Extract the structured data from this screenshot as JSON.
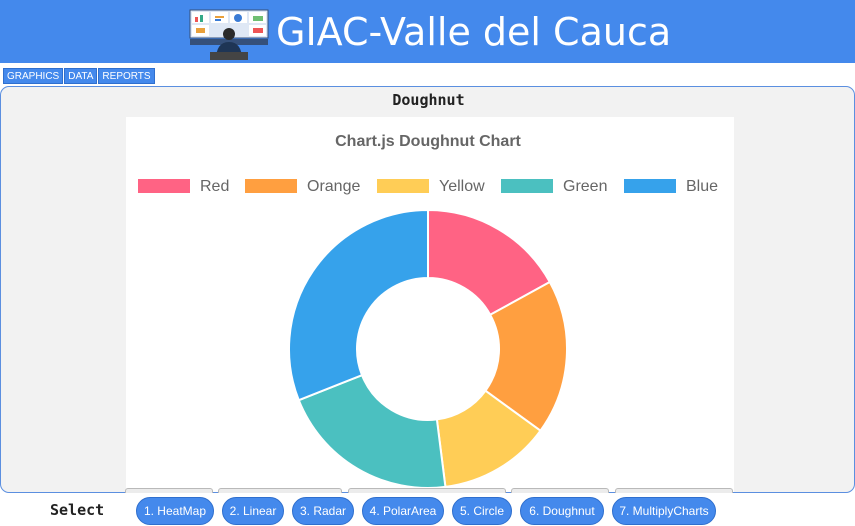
{
  "header": {
    "app_title": "GIAC-Valle del Cauca",
    "logo_icon": "dashboard-monitors-user-icon"
  },
  "nav": {
    "tabs": [
      {
        "label": "GRAPHICS"
      },
      {
        "label": "DATA"
      },
      {
        "label": "REPORTS"
      }
    ]
  },
  "panel": {
    "title": "Doughnut"
  },
  "chart_data": {
    "type": "pie",
    "variant": "doughnut",
    "title": "Chart.js Doughnut Chart",
    "legend_position": "top",
    "categories": [
      "Red",
      "Orange",
      "Yellow",
      "Green",
      "Blue"
    ],
    "values": [
      17,
      18,
      13,
      21,
      31
    ],
    "colors": [
      "#ff6384",
      "#ff9f40",
      "#ffcd56",
      "#4bc0c0",
      "#36a2eb"
    ]
  },
  "footer": {
    "select_label": "Select",
    "buttons": [
      {
        "label": "1. HeatMap"
      },
      {
        "label": "2. Linear"
      },
      {
        "label": "3. Radar"
      },
      {
        "label": "4. PolarArea"
      },
      {
        "label": "5. Circle"
      },
      {
        "label": "6. Doughnut"
      },
      {
        "label": "7. MultiplyCharts"
      }
    ]
  }
}
